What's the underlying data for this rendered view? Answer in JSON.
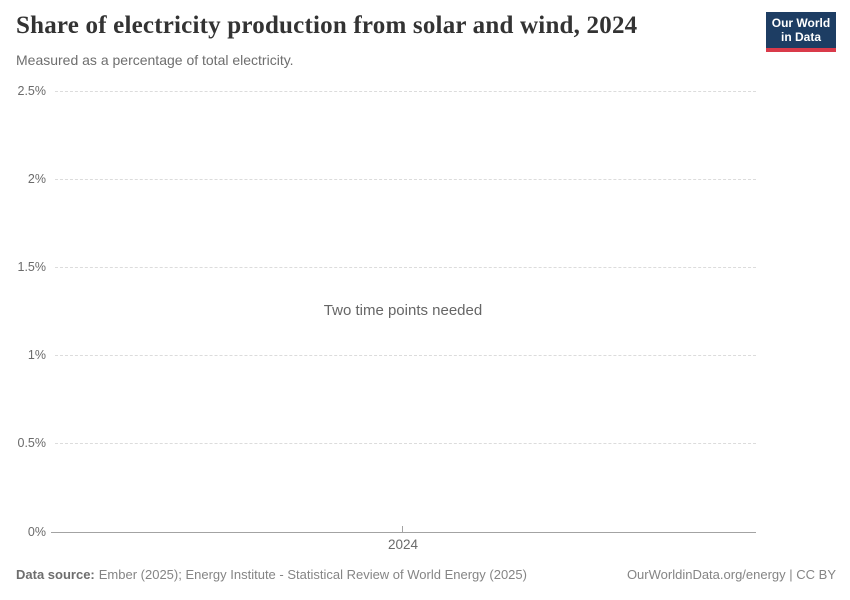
{
  "header": {
    "title": "Share of electricity production from solar and wind, 2024",
    "subtitle": "Measured as a percentage of total electricity.",
    "logo": {
      "line1": "Our World",
      "line2": "in Data",
      "bg_color": "#1d3d63",
      "accent_color": "#d93a4a"
    }
  },
  "chart_data": {
    "type": "line",
    "title": "Share of electricity production from solar and wind, 2024",
    "subtitle": "Measured as a percentage of total electricity.",
    "series": [],
    "empty_message": "Two time points needed",
    "x_tick_labels": [
      "2024"
    ],
    "y_tick_labels": [
      "2.5%",
      "2%",
      "1.5%",
      "1%",
      "0.5%",
      "0%"
    ],
    "ylabel": "",
    "xlabel": "",
    "ylim": [
      0,
      2.5
    ],
    "grid": true,
    "grid_color": "#dcdcdc",
    "axis_color": "#a3a3a3"
  },
  "footer": {
    "datasource_label": "Data source:",
    "datasource_value": "Ember (2025); Energy Institute - Statistical Review of World Energy (2025)",
    "credit": "OurWorldinData.org/energy | CC BY"
  }
}
